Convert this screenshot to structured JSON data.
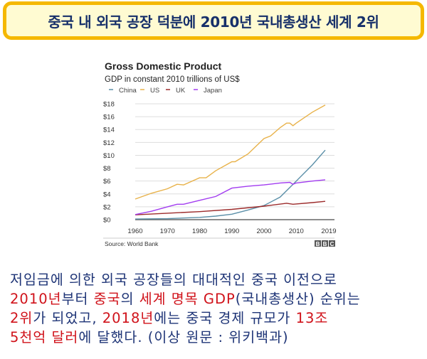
{
  "banner": {
    "title": "중국 내 외국 공장 덕분에 2010년 국내총생산 세계 2위"
  },
  "chart_data": {
    "type": "line",
    "title": "Gross Domestic Product",
    "subtitle": "GDP in constant 2010 trillions of US$",
    "source": "Source: World Bank",
    "logo": "BBC",
    "xlabel": "",
    "ylabel": "",
    "xlim": [
      1960,
      2019
    ],
    "ylim": [
      0,
      18
    ],
    "x_ticks": [
      "1960",
      "1970",
      "1980",
      "1990",
      "2000",
      "2010",
      "2019"
    ],
    "y_ticks": [
      "$0",
      "$2",
      "$4",
      "$6",
      "$8",
      "$10",
      "$12",
      "$14",
      "$16",
      "$18"
    ],
    "grid": true,
    "legend_position": "top-left",
    "series": [
      {
        "name": "China",
        "color": "#5b8fa8",
        "x": [
          1960,
          1970,
          1980,
          1985,
          1990,
          1995,
          2000,
          2005,
          2010,
          2015,
          2019
        ],
        "y": [
          0.1,
          0.15,
          0.35,
          0.55,
          0.85,
          1.5,
          2.2,
          3.5,
          6.0,
          8.5,
          10.8
        ]
      },
      {
        "name": "US",
        "color": "#e8b24a",
        "x": [
          1960,
          1965,
          1970,
          1973,
          1975,
          1980,
          1982,
          1985,
          1990,
          1991,
          1995,
          2000,
          2002,
          2005,
          2007,
          2008,
          2009,
          2010,
          2015,
          2019
        ],
        "y": [
          3.2,
          4.1,
          4.8,
          5.5,
          5.4,
          6.5,
          6.5,
          7.6,
          9.0,
          9.0,
          10.2,
          12.6,
          13.0,
          14.3,
          15.0,
          15.0,
          14.6,
          15.0,
          16.7,
          17.8
        ]
      },
      {
        "name": "UK",
        "color": "#9c2b2b",
        "x": [
          1960,
          1970,
          1980,
          1990,
          2000,
          2007,
          2009,
          2015,
          2019
        ],
        "y": [
          0.75,
          1.0,
          1.25,
          1.6,
          2.1,
          2.55,
          2.4,
          2.65,
          2.85
        ]
      },
      {
        "name": "Japan",
        "color": "#a23cf0",
        "x": [
          1960,
          1965,
          1970,
          1973,
          1975,
          1980,
          1985,
          1990,
          1995,
          2000,
          2005,
          2008,
          2009,
          2010,
          2015,
          2019
        ],
        "y": [
          0.8,
          1.3,
          2.0,
          2.4,
          2.4,
          3.0,
          3.6,
          4.9,
          5.2,
          5.4,
          5.7,
          5.8,
          5.5,
          5.7,
          6.0,
          6.2
        ]
      }
    ]
  },
  "body": {
    "lines": [
      [
        {
          "t": "저임금에 의한 외국 공장들의 대대적인 중국 이전으로",
          "red": false
        }
      ],
      [
        {
          "t": "2010년",
          "red": true
        },
        {
          "t": "부터 ",
          "red": false
        },
        {
          "t": "중국",
          "red": true
        },
        {
          "t": "의 ",
          "red": false
        },
        {
          "t": "세계 명목 GDP",
          "red": true
        },
        {
          "t": "(국내총생산) 순위는",
          "red": false
        }
      ],
      [
        {
          "t": "2위",
          "red": true
        },
        {
          "t": "가 되었고, ",
          "red": false
        },
        {
          "t": "2018년",
          "red": true
        },
        {
          "t": "에는 중국 경제 규모가 ",
          "red": false
        },
        {
          "t": "13조",
          "red": true
        }
      ],
      [
        {
          "t": "5천억 달러",
          "red": true
        },
        {
          "t": "에 달했다. (이상 원문 : 위키백과)",
          "red": false
        }
      ]
    ]
  }
}
